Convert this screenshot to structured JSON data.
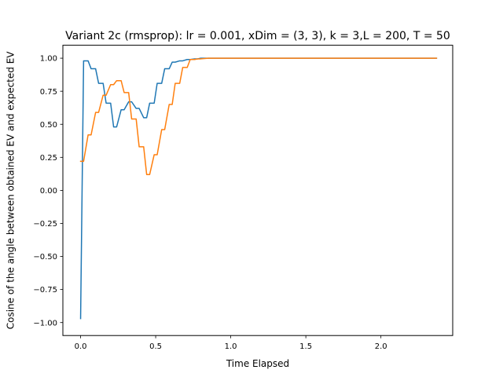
{
  "chart_data": {
    "type": "line",
    "title": "Variant 2c (rmsprop): lr = 0.001, xDim = (3, 3), k = 3,L = 200, T = 50",
    "xlabel": "Time Elapsed",
    "ylabel": "Cosine of the angle between obtained EV and expected EV",
    "xlim": [
      -0.118,
      2.478
    ],
    "ylim": [
      -1.098,
      1.098
    ],
    "x_ticks": [
      0.0,
      0.5,
      1.0,
      1.5,
      2.0
    ],
    "x_tick_labels": [
      "0.0",
      "0.5",
      "1.0",
      "1.5",
      "2.0"
    ],
    "y_ticks": [
      -1.0,
      -0.75,
      -0.5,
      -0.25,
      0.0,
      0.25,
      0.5,
      0.75,
      1.0
    ],
    "y_tick_labels": [
      "−1.00",
      "−0.75",
      "−0.50",
      "−0.25",
      "0.00",
      "0.25",
      "0.50",
      "0.75",
      "1.00"
    ],
    "grid": false,
    "legend": "none",
    "series": [
      {
        "color": "#1f77b4",
        "x": [
          0.0,
          0.02,
          0.05,
          0.07,
          0.1,
          0.12,
          0.15,
          0.17,
          0.2,
          0.22,
          0.24,
          0.27,
          0.29,
          0.32,
          0.34,
          0.37,
          0.39,
          0.42,
          0.44,
          0.46,
          0.49,
          0.51,
          0.54,
          0.56,
          0.59,
          0.61,
          0.63,
          0.66,
          0.68,
          0.71,
          0.73,
          0.76,
          0.78,
          0.8,
          0.85,
          0.9,
          1.0,
          1.2,
          1.5,
          1.8,
          2.1,
          2.37
        ],
        "y": [
          -0.97,
          0.98,
          0.98,
          0.92,
          0.92,
          0.81,
          0.81,
          0.66,
          0.66,
          0.48,
          0.48,
          0.61,
          0.61,
          0.67,
          0.67,
          0.62,
          0.62,
          0.55,
          0.55,
          0.66,
          0.66,
          0.81,
          0.81,
          0.92,
          0.92,
          0.97,
          0.97,
          0.98,
          0.98,
          0.99,
          0.99,
          0.995,
          0.995,
          1.0,
          1.0,
          1.0,
          1.0,
          1.0,
          1.0,
          1.0,
          1.0,
          1.0
        ]
      },
      {
        "color": "#ff7f0e",
        "x": [
          0.0,
          0.02,
          0.05,
          0.07,
          0.1,
          0.12,
          0.15,
          0.17,
          0.2,
          0.22,
          0.24,
          0.27,
          0.29,
          0.32,
          0.34,
          0.37,
          0.39,
          0.42,
          0.44,
          0.46,
          0.49,
          0.51,
          0.54,
          0.56,
          0.59,
          0.61,
          0.63,
          0.66,
          0.68,
          0.71,
          0.73,
          0.76,
          0.78,
          0.8,
          0.85,
          0.9,
          1.0,
          1.2,
          1.5,
          1.8,
          2.1,
          2.37
        ],
        "y": [
          0.22,
          0.22,
          0.42,
          0.42,
          0.59,
          0.59,
          0.72,
          0.72,
          0.8,
          0.8,
          0.83,
          0.83,
          0.74,
          0.74,
          0.54,
          0.54,
          0.33,
          0.33,
          0.12,
          0.12,
          0.27,
          0.27,
          0.46,
          0.46,
          0.65,
          0.65,
          0.81,
          0.81,
          0.93,
          0.93,
          0.99,
          0.99,
          0.995,
          0.995,
          1.0,
          1.0,
          1.0,
          1.0,
          1.0,
          1.0,
          1.0,
          1.0
        ]
      }
    ]
  }
}
